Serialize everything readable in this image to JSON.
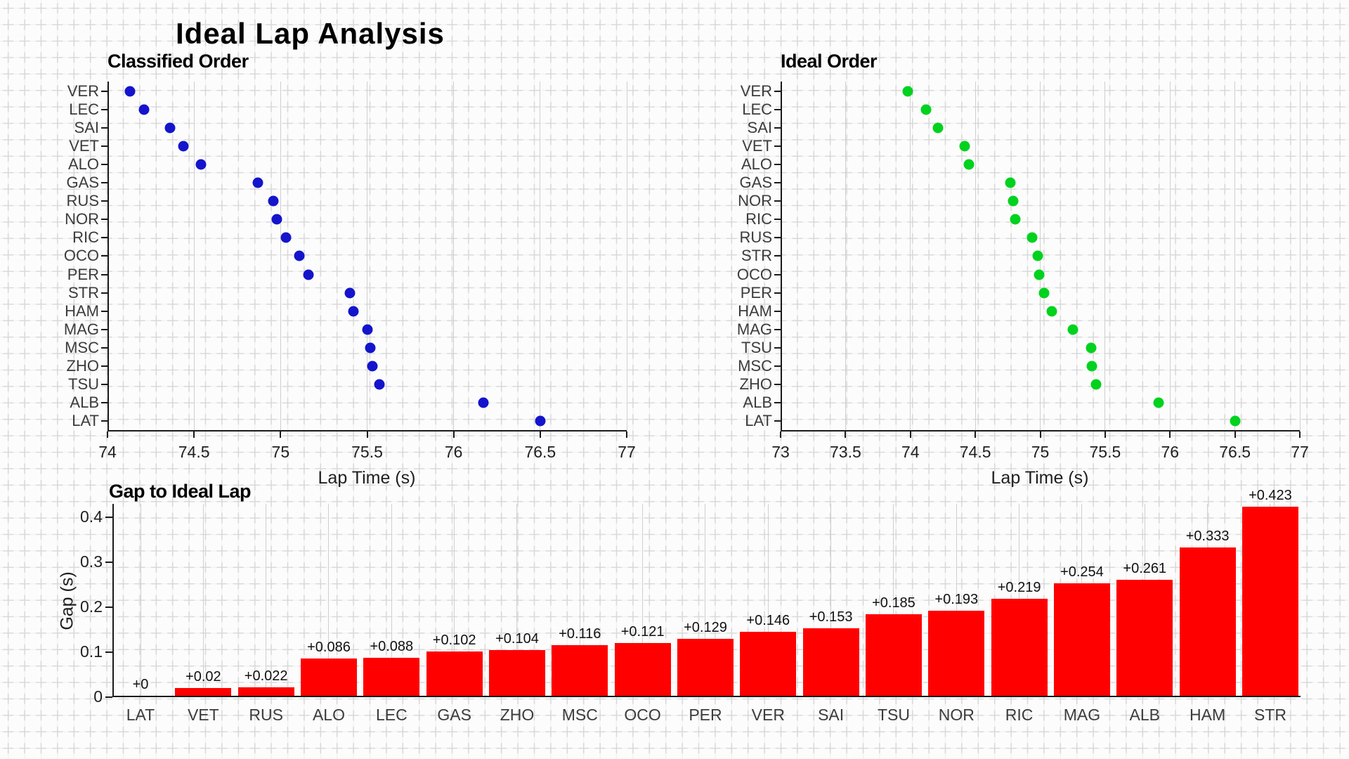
{
  "page": {
    "title": "Ideal Lap Analysis"
  },
  "colors": {
    "background": "#fbfbfb",
    "paper_cross": "#d9d9d9",
    "paper_line": "#efefef",
    "axis": "#1a1a1a",
    "gridline": "#cfcfcf",
    "classified_marker": "#1414cc",
    "ideal_marker": "#00d21e",
    "bar_fill": "#ff0000"
  },
  "chart_data": [
    {
      "id": "classified",
      "type": "scatter",
      "title": "Classified Order",
      "xlabel": "Lap Time (s)",
      "xlim": [
        74,
        77
      ],
      "xticks": [
        74,
        74.5,
        75,
        75.5,
        76,
        76.5,
        77
      ],
      "xtick_labels": [
        "74",
        "74.5",
        "75",
        "75.5",
        "76",
        "76.5",
        "77"
      ],
      "grid": "vertical",
      "legend": "none",
      "categories": [
        "VER",
        "LEC",
        "SAI",
        "VET",
        "ALO",
        "GAS",
        "RUS",
        "NOR",
        "RIC",
        "OCO",
        "PER",
        "STR",
        "HAM",
        "MAG",
        "MSC",
        "ZHO",
        "TSU",
        "ALB",
        "LAT"
      ],
      "values": [
        74.13,
        74.21,
        74.36,
        74.44,
        74.54,
        74.87,
        74.96,
        74.98,
        75.03,
        75.11,
        75.16,
        75.4,
        75.42,
        75.5,
        75.52,
        75.53,
        75.57,
        76.17,
        76.5
      ],
      "marker_color": "#1414cc"
    },
    {
      "id": "ideal",
      "type": "scatter",
      "title": "Ideal Order",
      "xlabel": "Lap Time (s)",
      "xlim": [
        73,
        77
      ],
      "xticks": [
        73,
        73.5,
        74,
        74.5,
        75,
        75.5,
        76,
        76.5,
        77
      ],
      "xtick_labels": [
        "73",
        "73.5",
        "74",
        "74.5",
        "75",
        "75.5",
        "76",
        "76.5",
        "77"
      ],
      "grid": "vertical",
      "legend": "none",
      "categories": [
        "VER",
        "LEC",
        "SAI",
        "VET",
        "ALO",
        "GAS",
        "NOR",
        "RIC",
        "RUS",
        "STR",
        "OCO",
        "PER",
        "HAM",
        "MAG",
        "TSU",
        "MSC",
        "ZHO",
        "ALB",
        "LAT"
      ],
      "values": [
        73.98,
        74.12,
        74.21,
        74.42,
        74.45,
        74.77,
        74.79,
        74.81,
        74.94,
        74.98,
        74.99,
        75.03,
        75.09,
        75.25,
        75.39,
        75.4,
        75.43,
        75.91,
        76.5
      ],
      "marker_color": "#00d21e"
    },
    {
      "id": "gap",
      "type": "bar",
      "title": "Gap to Ideal Lap",
      "ylabel": "Gap (s)",
      "ylim": [
        0,
        0.43
      ],
      "yticks": [
        0,
        0.1,
        0.2,
        0.3,
        0.4
      ],
      "ytick_labels": [
        "0",
        "0.1",
        "0.2",
        "0.3",
        "0.4"
      ],
      "grid": "vertical",
      "legend": "none",
      "categories": [
        "LAT",
        "VET",
        "RUS",
        "ALO",
        "LEC",
        "GAS",
        "ZHO",
        "MSC",
        "OCO",
        "PER",
        "VER",
        "SAI",
        "TSU",
        "NOR",
        "RIC",
        "MAG",
        "ALB",
        "HAM",
        "STR"
      ],
      "values": [
        0,
        0.02,
        0.022,
        0.086,
        0.088,
        0.102,
        0.104,
        0.116,
        0.121,
        0.129,
        0.146,
        0.153,
        0.185,
        0.193,
        0.219,
        0.254,
        0.261,
        0.333,
        0.423
      ],
      "value_labels": [
        "+0",
        "+0.02",
        "+0.022",
        "+0.086",
        "+0.088",
        "+0.102",
        "+0.104",
        "+0.116",
        "+0.121",
        "+0.129",
        "+0.146",
        "+0.153",
        "+0.185",
        "+0.193",
        "+0.219",
        "+0.254",
        "+0.261",
        "+0.333",
        "+0.423"
      ],
      "bar_color": "#ff0000"
    }
  ]
}
